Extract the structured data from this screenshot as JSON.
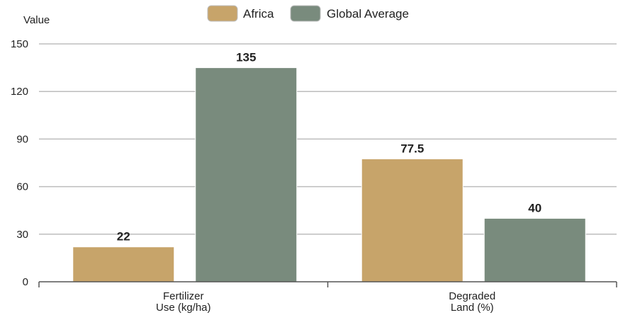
{
  "chart_data": {
    "type": "bar",
    "title": "",
    "xlabel": "",
    "ylabel": "Value",
    "categories": [
      [
        "Fertilizer",
        "Use (kg/ha)"
      ],
      [
        "Degraded",
        "Land (%)"
      ]
    ],
    "series": [
      {
        "name": "Africa",
        "values": [
          22,
          77.5
        ],
        "color": "#c7a46a"
      },
      {
        "name": "Global Average",
        "values": [
          135,
          40
        ],
        "color": "#798b7d"
      }
    ],
    "ylim": [
      0,
      150
    ],
    "yticks": [
      0,
      30,
      60,
      90,
      120,
      150
    ],
    "grid": true,
    "legend_position": "top-center",
    "data_labels": true
  }
}
